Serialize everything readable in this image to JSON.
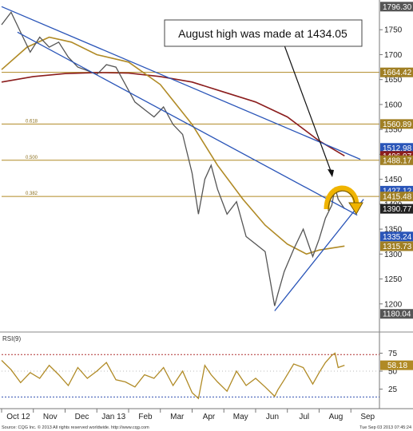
{
  "chart_data": {
    "type": "line",
    "annotation": "August high was made at 1434.05",
    "source_left": "Source: CQG Inc. © 2013 All rights reserved worldwide. http://www.cqg.com",
    "source_right": "Tue Sep 03 2013 07:45:24",
    "x_tick_labels": [
      "Oct 12",
      "Nov",
      "Dec",
      "Jan 13",
      "Feb",
      "Mar",
      "Apr",
      "May",
      "Jun",
      "Jul",
      "Aug",
      "Sep"
    ],
    "price_axis": {
      "ylim": [
        1150,
        1800
      ],
      "ticks": [
        1200,
        1250,
        1300,
        1350,
        1400,
        1450,
        1500,
        1550,
        1600,
        1650,
        1700,
        1750
      ]
    },
    "price_tags": [
      {
        "label": "1796.30",
        "value": 1796.3,
        "color": "#555555"
      },
      {
        "label": "1664.42",
        "value": 1664.42,
        "color": "#a07f24"
      },
      {
        "label": "1560.89",
        "value": 1560.89,
        "color": "#a07f24"
      },
      {
        "label": "1512.98",
        "value": 1512.98,
        "color": "#2a55b8"
      },
      {
        "label": "1496.97",
        "value": 1496.97,
        "color": "#8b1d1d"
      },
      {
        "label": "1488.17",
        "value": 1488.17,
        "color": "#a07f24"
      },
      {
        "label": "1427.12",
        "value": 1427.12,
        "color": "#2a55b8"
      },
      {
        "label": "1415.48",
        "value": 1415.48,
        "color": "#a07f24"
      },
      {
        "label": "1390.77",
        "value": 1390.77,
        "color": "#222222"
      },
      {
        "label": "1335.24",
        "value": 1335.24,
        "color": "#2a55b8"
      },
      {
        "label": "1315.73",
        "value": 1315.73,
        "color": "#a07f24"
      },
      {
        "label": "1180.04",
        "value": 1180.04,
        "color": "#555555"
      }
    ],
    "fib_levels": [
      {
        "label": "",
        "value": 1664.42
      },
      {
        "label": "0.618",
        "value": 1560.89
      },
      {
        "label": "0.500",
        "value": 1488.17
      },
      {
        "label": "0.382",
        "value": 1415.48
      }
    ],
    "trendlines": [
      {
        "name": "upper",
        "color": "#2a55b8",
        "points": [
          [
            0.0,
            1796.3
          ],
          [
            11.3,
            1490
          ]
        ]
      },
      {
        "name": "lower",
        "color": "#2a55b8",
        "points": [
          [
            0.5,
            1745
          ],
          [
            11.2,
            1378
          ]
        ]
      },
      {
        "name": "support",
        "color": "#2a55b8",
        "points": [
          [
            8.6,
            1186
          ],
          [
            11.4,
            1410
          ]
        ]
      }
    ],
    "price_series": {
      "color": "#555555",
      "x": [
        0.0,
        0.3,
        0.6,
        0.9,
        1.2,
        1.5,
        1.8,
        2.1,
        2.4,
        2.7,
        3.0,
        3.3,
        3.6,
        3.9,
        4.2,
        4.5,
        4.8,
        5.1,
        5.4,
        5.7,
        6.0,
        6.2,
        6.4,
        6.6,
        6.8,
        7.1,
        7.4,
        7.7,
        8.0,
        8.3,
        8.6,
        8.7,
        8.9,
        9.2,
        9.5,
        9.8,
        10.0,
        10.2,
        10.4,
        10.5,
        10.6,
        10.8
      ],
      "y": [
        1760,
        1785,
        1745,
        1705,
        1735,
        1715,
        1725,
        1695,
        1675,
        1668,
        1660,
        1680,
        1675,
        1640,
        1605,
        1590,
        1575,
        1595,
        1560,
        1540,
        1462,
        1380,
        1450,
        1478,
        1430,
        1380,
        1405,
        1335,
        1320,
        1305,
        1196,
        1220,
        1265,
        1310,
        1350,
        1295,
        1330,
        1372,
        1398,
        1434.05,
        1410,
        1390.77
      ]
    },
    "moving_averages": [
      {
        "name": "",
        "color": "#8b1d1d",
        "x": [
          0.0,
          1.0,
          2.0,
          3.0,
          4.0,
          5.0,
          6.0,
          7.0,
          8.0,
          9.0,
          10.0,
          10.8
        ],
        "y": [
          1645,
          1656,
          1662,
          1664,
          1663,
          1656,
          1645,
          1625,
          1605,
          1575,
          1527,
          1497
        ]
      },
      {
        "name": "",
        "color": "#b08a25",
        "x": [
          0.0,
          0.8,
          1.5,
          2.2,
          3.0,
          4.0,
          5.0,
          6.0,
          6.8,
          7.6,
          8.3,
          9.0,
          9.6,
          10.0,
          10.4,
          10.8
        ],
        "y": [
          1670,
          1715,
          1735,
          1725,
          1700,
          1685,
          1640,
          1560,
          1478,
          1410,
          1358,
          1320,
          1300,
          1308,
          1312,
          1316
        ]
      }
    ],
    "rsi": {
      "label": "RSI(9)",
      "ylim": [
        0,
        100
      ],
      "ticks": [
        25,
        50,
        75
      ],
      "last_value": "58.18",
      "overbought": 73,
      "oversold": 14,
      "color": "#b08a25",
      "x": [
        0.0,
        0.3,
        0.6,
        0.9,
        1.2,
        1.5,
        1.8,
        2.1,
        2.4,
        2.7,
        3.0,
        3.3,
        3.6,
        3.9,
        4.2,
        4.5,
        4.8,
        5.1,
        5.4,
        5.7,
        6.0,
        6.2,
        6.4,
        6.6,
        6.8,
        7.1,
        7.4,
        7.7,
        8.0,
        8.3,
        8.6,
        8.7,
        8.9,
        9.2,
        9.5,
        9.8,
        10.0,
        10.2,
        10.4,
        10.5,
        10.6,
        10.8
      ],
      "y": [
        65,
        52,
        34,
        48,
        40,
        58,
        45,
        30,
        55,
        40,
        50,
        62,
        38,
        35,
        28,
        45,
        40,
        55,
        30,
        50,
        20,
        12,
        58,
        45,
        35,
        22,
        50,
        30,
        40,
        28,
        15,
        24,
        38,
        60,
        55,
        32,
        48,
        62,
        72,
        75,
        55,
        58.18
      ]
    }
  }
}
